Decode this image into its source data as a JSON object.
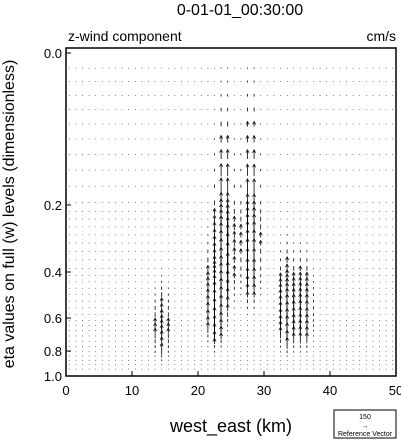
{
  "chart_data": {
    "type": "quiver",
    "title": "0-01-01_00:30:00",
    "field_label": "z-wind component",
    "units_label": "cm/s",
    "xlabel": "west_east (km)",
    "ylabel": "eta values on full (w) levels (dimensionless)",
    "xlim": [
      0,
      50
    ],
    "xticks": [
      0,
      10,
      20,
      30,
      40,
      50
    ],
    "yticks": [
      {
        "value": 0.0,
        "label": "0.0"
      },
      {
        "value": 0.2,
        "label": "0.2"
      },
      {
        "value": 0.4,
        "label": "0.4"
      },
      {
        "value": 0.6,
        "label": "0.6"
      },
      {
        "value": 0.8,
        "label": "0.8"
      },
      {
        "value": 1.0,
        "label": "1.0"
      }
    ],
    "y_axis_inverted": true,
    "reference_vector": {
      "magnitude": "150",
      "arrow": "→",
      "label": "Reference Vector"
    },
    "updraft_cores_km": [
      {
        "x": 22.7,
        "eta": 0.52,
        "peak_w": 130
      },
      {
        "x": 24.0,
        "eta": 0.32,
        "peak_w": 150
      },
      {
        "x": 28.0,
        "eta": 0.3,
        "peak_w": 110
      },
      {
        "x": 33.5,
        "eta": 0.56,
        "peak_w": 90
      },
      {
        "x": 36.0,
        "eta": 0.56,
        "peak_w": 60
      },
      {
        "x": 14.5,
        "eta": 0.65,
        "peak_w": 40
      }
    ]
  }
}
